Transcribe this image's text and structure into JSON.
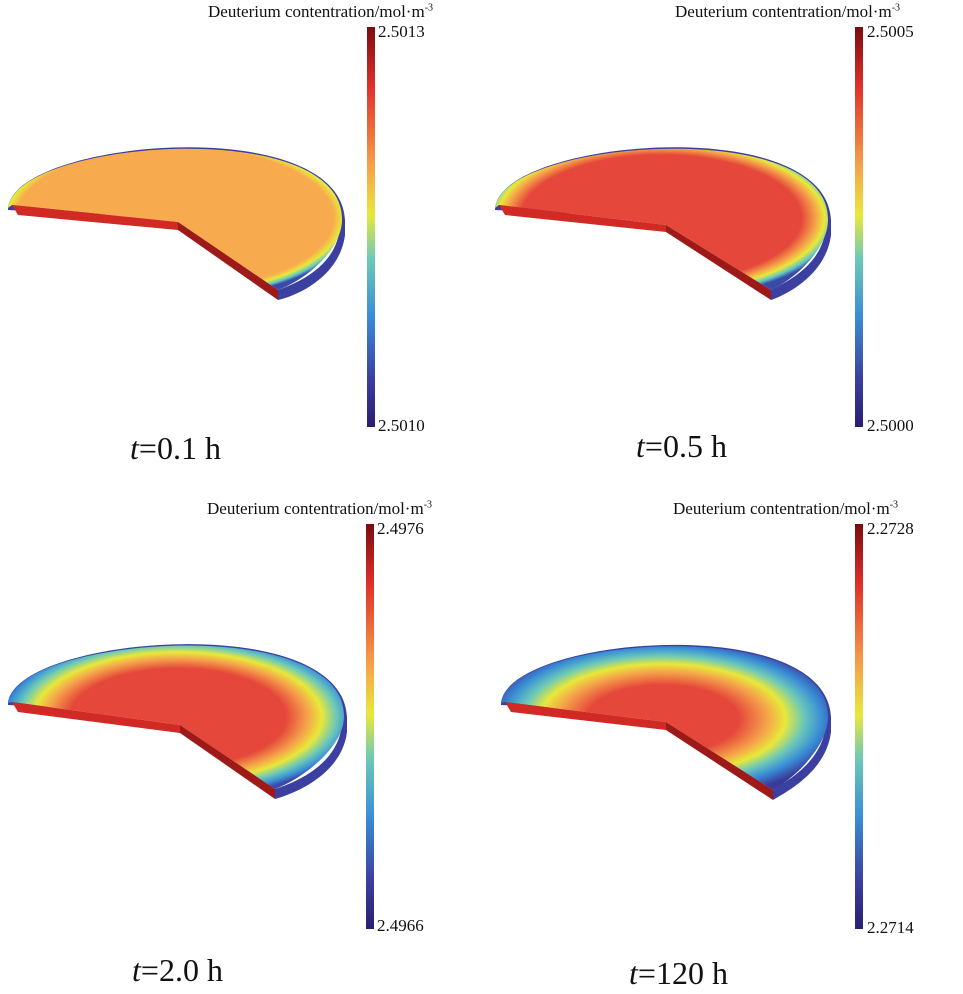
{
  "panels": [
    {
      "time_var": "t",
      "time_rest": "=0.1 h",
      "title_main": "Deuterium contentration/mol·m",
      "title_exp": "-3",
      "max": "2.5013",
      "min": "2.5010"
    },
    {
      "time_var": "t",
      "time_rest": "=0.5 h",
      "title_main": "Deuterium contentration/mol·m",
      "title_exp": "-3",
      "max": "2.5005",
      "min": "2.5000"
    },
    {
      "time_var": "t",
      "time_rest": "=2.0 h",
      "title_main": "Deuterium contentration/mol·m",
      "title_exp": "-3",
      "max": "2.4976",
      "min": "2.4966"
    },
    {
      "time_var": "t",
      "time_rest": "=120 h",
      "title_main": "Deuterium contentration/mol·m",
      "title_exp": "-3",
      "max": "2.2728",
      "min": "2.2714"
    }
  ],
  "colors": {
    "colormap": [
      "#8b0000",
      "#e0302a",
      "#f5a34a",
      "#e8e83a",
      "#6cc9b8",
      "#3a8fd6",
      "#3b3fa0",
      "#2a1e6e"
    ]
  }
}
